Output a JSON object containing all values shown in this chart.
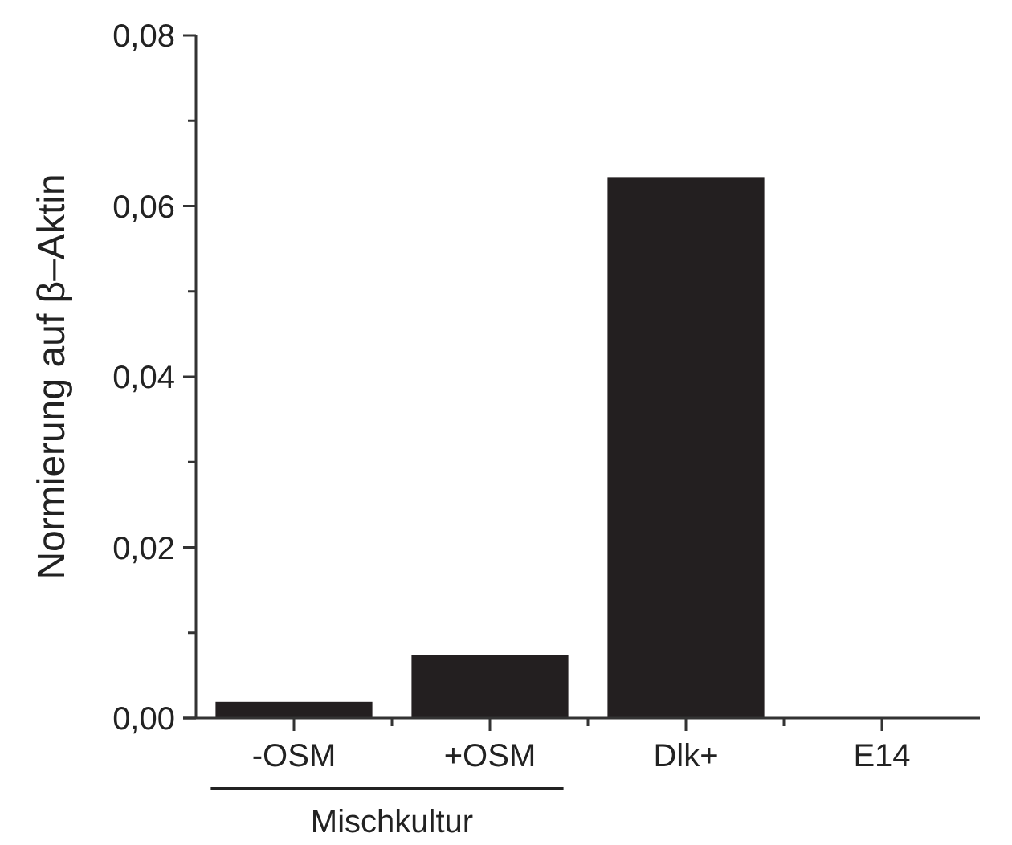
{
  "chart_data": {
    "type": "bar",
    "ylabel": "Normierung auf β–Aktin",
    "categories": [
      "-OSM",
      "+OSM",
      "Dlk+",
      "E14"
    ],
    "values": [
      0.0019,
      0.0074,
      0.0634,
      0
    ],
    "color": "#231f20",
    "ylim": [
      0,
      0.08
    ],
    "yticks": [
      {
        "value": 0,
        "label": "0,00"
      },
      {
        "value": 0.01,
        "label": null
      },
      {
        "value": 0.02,
        "label": "0,02"
      },
      {
        "value": 0.03,
        "label": null
      },
      {
        "value": 0.04,
        "label": "0,04"
      },
      {
        "value": 0.05,
        "label": null
      },
      {
        "value": 0.06,
        "label": "0,06"
      },
      {
        "value": 0.07,
        "label": null
      },
      {
        "value": 0.08,
        "label": "0,08"
      }
    ],
    "grid": false,
    "annotations": [
      "Mischkultur"
    ]
  }
}
